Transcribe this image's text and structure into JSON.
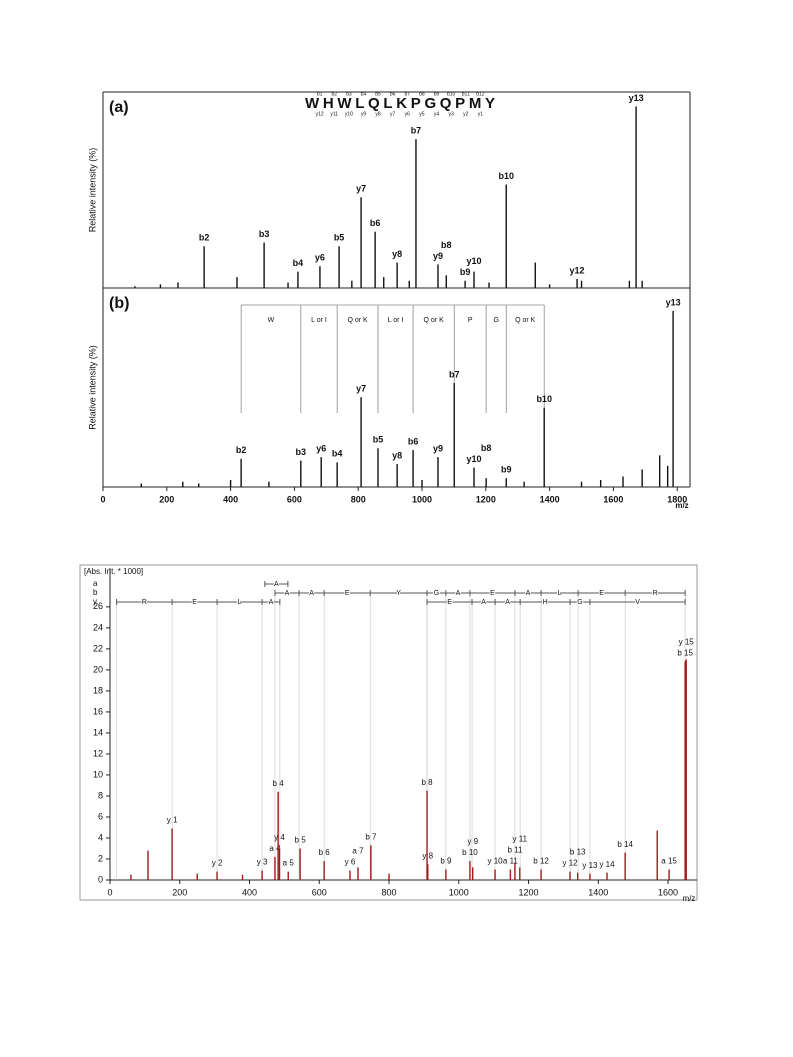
{
  "chart_data": [
    {
      "type": "spectrum",
      "panel_label": "(a)",
      "ylabel": "Relative intensity (%)",
      "color": "#111111",
      "sequence": "WHWLQLKPGQPMY",
      "b_ions": [
        "b1",
        "b2",
        "b3",
        "b4",
        "b5",
        "b6",
        "b7",
        "b8",
        "b9",
        "b10",
        "b11",
        "b12"
      ],
      "y_ions": [
        "y12",
        "y11",
        "y10",
        "y9",
        "y8",
        "y7",
        "y6",
        "y5",
        "y4",
        "y3",
        "y2",
        "y1"
      ],
      "xlim": [
        0,
        1840
      ],
      "ylim": [
        0,
        108
      ],
      "x": [
        100,
        180,
        235,
        317,
        420,
        505,
        580,
        611,
        680,
        740,
        780,
        809,
        853,
        880,
        922,
        960,
        981,
        1050,
        1076,
        1135,
        1163,
        1210,
        1264,
        1355,
        1400,
        1486,
        1500,
        1650,
        1671,
        1690
      ],
      "values": [
        1,
        2,
        3,
        23,
        6,
        25,
        3,
        9,
        12,
        23,
        4,
        50,
        31,
        6,
        14,
        4,
        82,
        13,
        7,
        4,
        9,
        3,
        57,
        14,
        2,
        5,
        4,
        4,
        100,
        4
      ],
      "peak_labels": [
        null,
        null,
        null,
        "b2",
        null,
        "b3",
        null,
        "b4",
        "y6",
        "b5",
        null,
        "y7",
        "b6",
        null,
        "y8",
        null,
        "b7",
        "y9",
        "b8",
        "b9",
        "y10",
        null,
        "b10",
        null,
        null,
        "y12",
        null,
        null,
        "y13",
        null
      ]
    },
    {
      "type": "spectrum",
      "panel_label": "(b)",
      "ylabel": "Relative intensity (%)",
      "color": "#111111",
      "xlabel": "m/z",
      "xlim": [
        0,
        1840
      ],
      "ylim": [
        0,
        113
      ],
      "xticks": [
        0,
        200,
        400,
        600,
        800,
        1000,
        1200,
        1400,
        1600,
        1800
      ],
      "x": [
        120,
        250,
        300,
        400,
        433,
        520,
        620,
        684,
        734,
        809,
        862,
        922,
        972,
        1000,
        1050,
        1101,
        1163,
        1201,
        1264,
        1320,
        1383,
        1500,
        1560,
        1630,
        1690,
        1745,
        1770,
        1787
      ],
      "values": [
        2,
        3,
        2,
        4,
        16,
        3,
        15,
        17,
        14,
        51,
        22,
        13,
        21,
        4,
        17,
        59,
        11,
        5,
        5,
        3,
        45,
        3,
        4,
        6,
        10,
        18,
        12,
        100
      ],
      "peak_labels": [
        null,
        null,
        null,
        null,
        "b2",
        null,
        "b3",
        "y6",
        "b4",
        "y7",
        "b5",
        "y8",
        "b6",
        null,
        "y9",
        "b7",
        "y10",
        "b8",
        "b9",
        null,
        "b10",
        null,
        null,
        null,
        null,
        null,
        null,
        "y13"
      ],
      "residues": [
        "W",
        "L or I",
        "Q or K",
        "L or I",
        "Q or K",
        "P",
        "G",
        "Q or K"
      ],
      "residue_bounds": [
        433,
        620,
        734,
        862,
        972,
        1101,
        1201,
        1264,
        1383
      ]
    },
    {
      "type": "spectrum",
      "ylabel": "[Abs. Int. * 1000]",
      "xlabel": "m/z",
      "color": "#a01818",
      "xlim": [
        0,
        1683
      ],
      "ylim": [
        0,
        29.7
      ],
      "xticks": [
        0,
        200,
        400,
        600,
        800,
        1000,
        1200,
        1400,
        1600
      ],
      "yticks": [
        0,
        2,
        4,
        6,
        8,
        10,
        12,
        14,
        16,
        18,
        20,
        22,
        24,
        26
      ],
      "ion_colors": {
        "a": "#1f9a2a",
        "b": "#e02020",
        "y": "#2236d0"
      },
      "x": [
        60,
        109,
        178,
        250,
        307,
        380,
        436,
        473,
        482,
        486,
        511,
        545,
        614,
        688,
        711,
        748,
        800,
        909,
        911,
        963,
        1032,
        1040,
        1104,
        1148,
        1161,
        1175,
        1236,
        1319,
        1341,
        1376,
        1425,
        1477,
        1569,
        1603,
        1649,
        1652
      ],
      "values": [
        0.5,
        2.8,
        4.9,
        0.6,
        0.8,
        0.5,
        0.9,
        2.2,
        8.4,
        3.0,
        0.8,
        3.0,
        1.8,
        0.9,
        1.2,
        3.3,
        0.6,
        8.5,
        1.5,
        1.0,
        1.8,
        1.2,
        1.0,
        1.0,
        1.6,
        1.2,
        1.0,
        0.8,
        0.7,
        0.6,
        0.7,
        2.6,
        4.7,
        1.0,
        20.8,
        21
      ],
      "peak_labels": [
        null,
        null,
        "y 1",
        null,
        "y 2",
        null,
        "y 3",
        "a 4",
        "b 4",
        "y 4",
        "a 5",
        "b 5",
        "b 6",
        "y 6",
        "a 7",
        "b 7",
        null,
        "b 8",
        "y 8",
        "b 9",
        "b 10",
        "y 9",
        "y 10",
        "a 11",
        "b 11",
        "y 11",
        "b 12",
        "y 12",
        "b 13",
        "y 13",
        "y 14",
        "b 14",
        null,
        "a 15",
        "b 15",
        "y 15"
      ],
      "lanes": [
        {
          "name": "a",
          "segments": [
            {
              "residues": [
                "A"
              ],
              "bounds": [
                444,
                510
              ]
            }
          ]
        },
        {
          "name": "b",
          "segments": [
            {
              "residues": [
                "A",
                "A",
                "E",
                "Y",
                "G",
                "A",
                "E",
                "A",
                "L",
                "E",
                "R"
              ],
              "bounds": [
                473,
                542,
                614,
                746,
                909,
                963,
                1032,
                1161,
                1236,
                1342,
                1477,
                1649
              ]
            }
          ]
        },
        {
          "name": "y",
          "segments": [
            {
              "residues": [
                "R",
                "E",
                "L",
                "A"
              ],
              "bounds": [
                19,
                178,
                307,
                436,
                487
              ]
            },
            {
              "residues": [
                "E",
                "A",
                "A",
                "H",
                "G",
                "V"
              ],
              "bounds": [
                909,
                1038,
                1104,
                1176,
                1319,
                1376,
                1649
              ]
            }
          ]
        }
      ]
    }
  ]
}
